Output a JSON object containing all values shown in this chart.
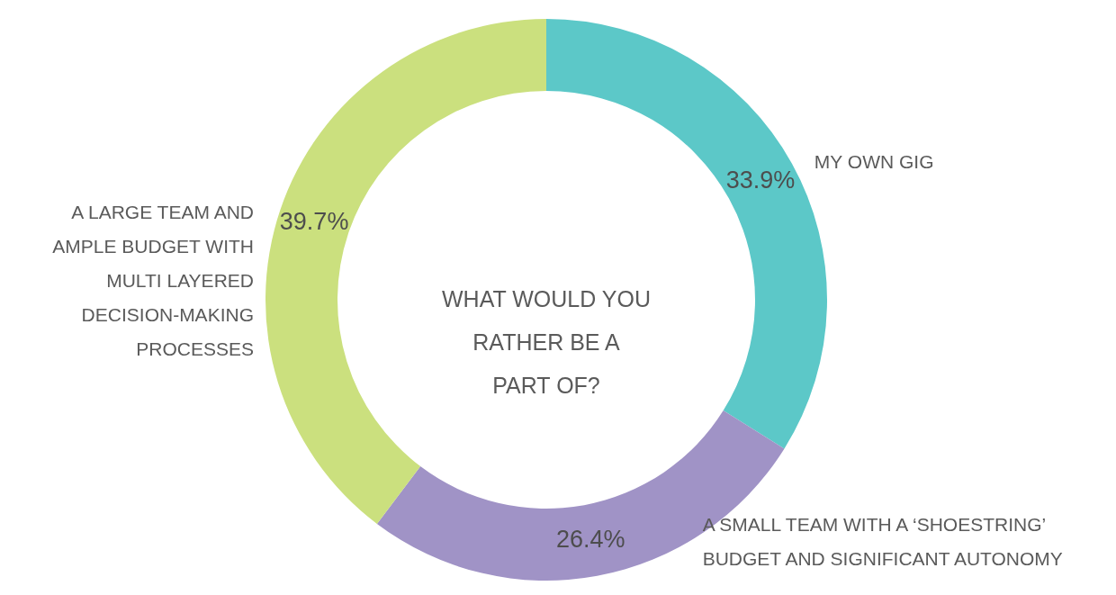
{
  "chart_data": {
    "type": "donut",
    "title": "WHAT WOULD YOU RATHER BE A PART OF?",
    "categories": [
      "MY OWN GIG",
      "A SMALL TEAM WITH A ‘SHOESTRING’ BUDGET AND SIGNIFICANT AUTONOMY",
      "A LARGE TEAM AND AMPLE BUDGET WITH MULTI LAYERED DECISION-MAKING PROCESSES"
    ],
    "values": [
      33.9,
      26.4,
      39.7
    ],
    "colors": [
      "#5cc8c8",
      "#a093c6",
      "#cbe07e"
    ],
    "value_labels": [
      "33.9%",
      "26.4%",
      "39.7%"
    ]
  }
}
